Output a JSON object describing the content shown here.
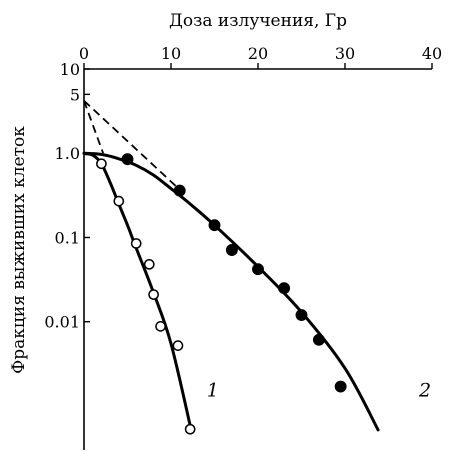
{
  "chart_data": {
    "type": "scatter",
    "title": "",
    "xlabel": "Доза излучения, Гр",
    "ylabel": "Фракция выживших клеток",
    "x_axis_position": "top",
    "xlim": [
      0,
      40
    ],
    "ylim": [
      0.0003,
      10
    ],
    "y_scale": "log",
    "grid": false,
    "x_ticks": [
      "0",
      "10",
      "20",
      "30",
      "40"
    ],
    "y_ticks": [
      {
        "value": 10,
        "label": "10"
      },
      {
        "value": 5,
        "label": "5"
      },
      {
        "value": 1.0,
        "label": "1.0"
      },
      {
        "value": 0.1,
        "label": "0.1"
      },
      {
        "value": 0.01,
        "label": "0.01"
      }
    ],
    "series": [
      {
        "name": "1",
        "marker": "open-circle",
        "points": [
          {
            "x": 2.0,
            "y": 0.75
          },
          {
            "x": 4.0,
            "y": 0.27
          },
          {
            "x": 6.0,
            "y": 0.085
          },
          {
            "x": 7.5,
            "y": 0.048
          },
          {
            "x": 8.0,
            "y": 0.021
          },
          {
            "x": 8.8,
            "y": 0.0088
          },
          {
            "x": 10.8,
            "y": 0.0052
          },
          {
            "x": 12.2,
            "y": 0.00053
          }
        ],
        "fit_curve": [
          {
            "x": 0.0,
            "y": 0.99
          },
          {
            "x": 1.0,
            "y": 0.95
          },
          {
            "x": 2.0,
            "y": 0.75
          },
          {
            "x": 3.0,
            "y": 0.45
          },
          {
            "x": 4.0,
            "y": 0.25
          },
          {
            "x": 5.0,
            "y": 0.14
          },
          {
            "x": 6.0,
            "y": 0.075
          },
          {
            "x": 8.0,
            "y": 0.022
          },
          {
            "x": 10.0,
            "y": 0.0055
          },
          {
            "x": 12.3,
            "y": 0.00053
          }
        ]
      },
      {
        "name": "2",
        "marker": "filled-circle",
        "points": [
          {
            "x": 5.0,
            "y": 0.85
          },
          {
            "x": 11.0,
            "y": 0.36
          },
          {
            "x": 15.0,
            "y": 0.14
          },
          {
            "x": 17.0,
            "y": 0.071
          },
          {
            "x": 20.0,
            "y": 0.042
          },
          {
            "x": 23.0,
            "y": 0.025
          },
          {
            "x": 25.0,
            "y": 0.012
          },
          {
            "x": 27.0,
            "y": 0.0061
          },
          {
            "x": 29.5,
            "y": 0.0017
          }
        ],
        "fit_curve": [
          {
            "x": 0.0,
            "y": 1.0
          },
          {
            "x": 2.0,
            "y": 0.97
          },
          {
            "x": 4.0,
            "y": 0.86
          },
          {
            "x": 6.0,
            "y": 0.72
          },
          {
            "x": 8.0,
            "y": 0.55
          },
          {
            "x": 10.0,
            "y": 0.38
          },
          {
            "x": 12.0,
            "y": 0.26
          },
          {
            "x": 15.0,
            "y": 0.14
          },
          {
            "x": 20.0,
            "y": 0.045
          },
          {
            "x": 25.0,
            "y": 0.013
          },
          {
            "x": 30.0,
            "y": 0.0028
          },
          {
            "x": 33.8,
            "y": 0.00052
          }
        ]
      }
    ],
    "dashed_lines": [
      {
        "points": [
          {
            "x": 0.0,
            "y": 4.2
          },
          {
            "x": 2.2,
            "y": 1.0
          }
        ]
      },
      {
        "points": [
          {
            "x": 0.0,
            "y": 4.2
          },
          {
            "x": 11.0,
            "y": 0.37
          }
        ]
      }
    ],
    "annotations": [
      {
        "text": "1",
        "x": 14.8,
        "y": 0.0013
      },
      {
        "text": "2",
        "x": 39.2,
        "y": 0.0013
      }
    ]
  }
}
